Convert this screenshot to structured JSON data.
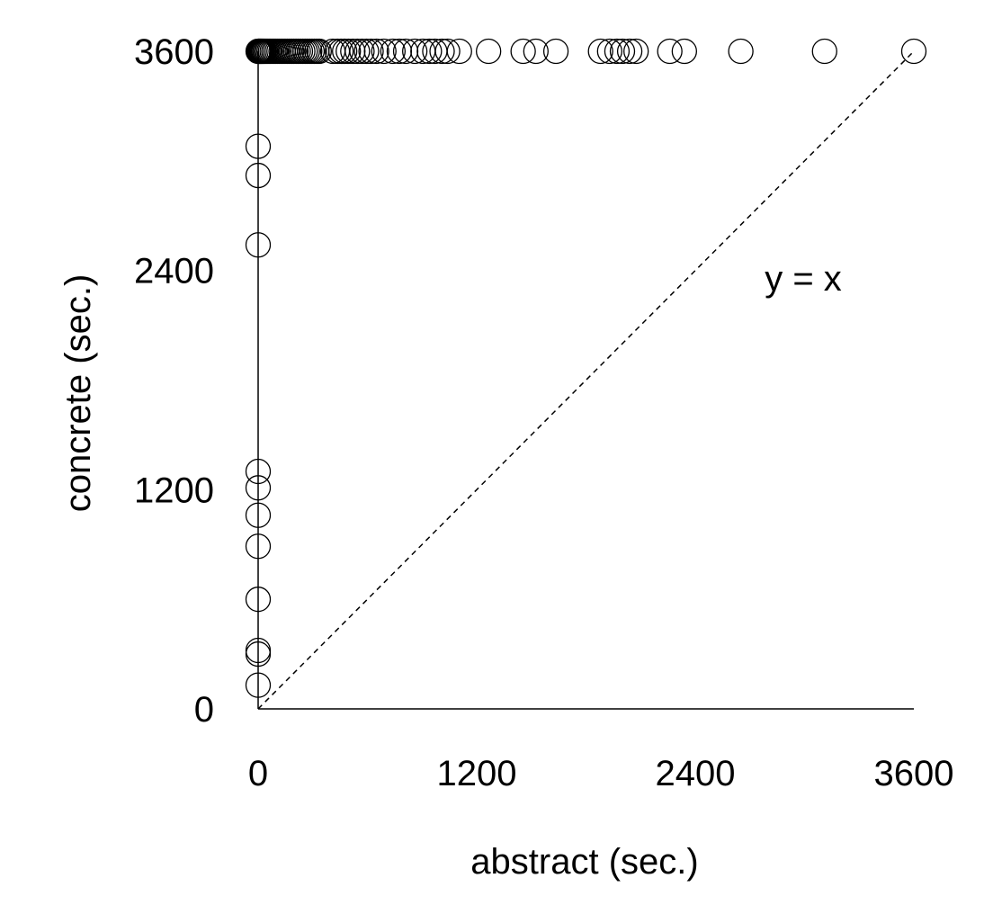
{
  "chart_data": {
    "type": "scatter",
    "xlabel": "abstract (sec.)",
    "ylabel": "concrete (sec.)",
    "xlim": [
      0,
      3600
    ],
    "ylim": [
      0,
      3600
    ],
    "xticks": [
      "0",
      "1200",
      "2400",
      "3600"
    ],
    "yticks": [
      "0",
      "1200",
      "2400",
      "3600"
    ],
    "grid": false,
    "reference_line": {
      "label": "y = x",
      "style": "dashed",
      "from": [
        0,
        0
      ],
      "to": [
        3600,
        3600
      ]
    },
    "marker": "open-circle",
    "color": "#000000",
    "series": [
      {
        "points": [
          [
            0,
            3600
          ],
          [
            3,
            3600
          ],
          [
            6,
            3600
          ],
          [
            10,
            3600
          ],
          [
            14,
            3600
          ],
          [
            18,
            3600
          ],
          [
            22,
            3600
          ],
          [
            27,
            3600
          ],
          [
            32,
            3600
          ],
          [
            38,
            3600
          ],
          [
            45,
            3600
          ],
          [
            52,
            3600
          ],
          [
            60,
            3600
          ],
          [
            68,
            3600
          ],
          [
            77,
            3600
          ],
          [
            86,
            3600
          ],
          [
            95,
            3600
          ],
          [
            105,
            3600
          ],
          [
            115,
            3600
          ],
          [
            126,
            3600
          ],
          [
            137,
            3600
          ],
          [
            148,
            3600
          ],
          [
            160,
            3600
          ],
          [
            172,
            3600
          ],
          [
            184,
            3600
          ],
          [
            196,
            3600
          ],
          [
            208,
            3600
          ],
          [
            220,
            3600
          ],
          [
            232,
            3600
          ],
          [
            245,
            3600
          ],
          [
            258,
            3600
          ],
          [
            270,
            3600
          ],
          [
            283,
            3600
          ],
          [
            296,
            3600
          ],
          [
            309,
            3600
          ],
          [
            322,
            3600
          ],
          [
            335,
            3600
          ],
          [
            410,
            3600
          ],
          [
            435,
            3600
          ],
          [
            455,
            3600
          ],
          [
            475,
            3600
          ],
          [
            495,
            3600
          ],
          [
            520,
            3600
          ],
          [
            545,
            3600
          ],
          [
            570,
            3600
          ],
          [
            595,
            3600
          ],
          [
            620,
            3600
          ],
          [
            650,
            3600
          ],
          [
            690,
            3600
          ],
          [
            740,
            3600
          ],
          [
            775,
            3600
          ],
          [
            810,
            3600
          ],
          [
            860,
            3600
          ],
          [
            905,
            3600
          ],
          [
            940,
            3600
          ],
          [
            970,
            3600
          ],
          [
            1010,
            3600
          ],
          [
            1040,
            3600
          ],
          [
            1105,
            3600
          ],
          [
            1265,
            3600
          ],
          [
            1455,
            3600
          ],
          [
            1525,
            3600
          ],
          [
            1635,
            3600
          ],
          [
            1880,
            3600
          ],
          [
            1930,
            3600
          ],
          [
            1970,
            3600
          ],
          [
            2000,
            3600
          ],
          [
            2040,
            3600
          ],
          [
            2075,
            3600
          ],
          [
            2260,
            3600
          ],
          [
            2340,
            3600
          ],
          [
            2650,
            3600
          ],
          [
            3110,
            3600
          ],
          [
            3600,
            3600
          ],
          [
            0,
            3080
          ],
          [
            0,
            2920
          ],
          [
            0,
            2540
          ],
          [
            0,
            1300
          ],
          [
            0,
            1210
          ],
          [
            0,
            1060
          ],
          [
            0,
            890
          ],
          [
            0,
            600
          ],
          [
            0,
            320
          ],
          [
            0,
            300
          ],
          [
            0,
            130
          ]
        ]
      }
    ]
  }
}
